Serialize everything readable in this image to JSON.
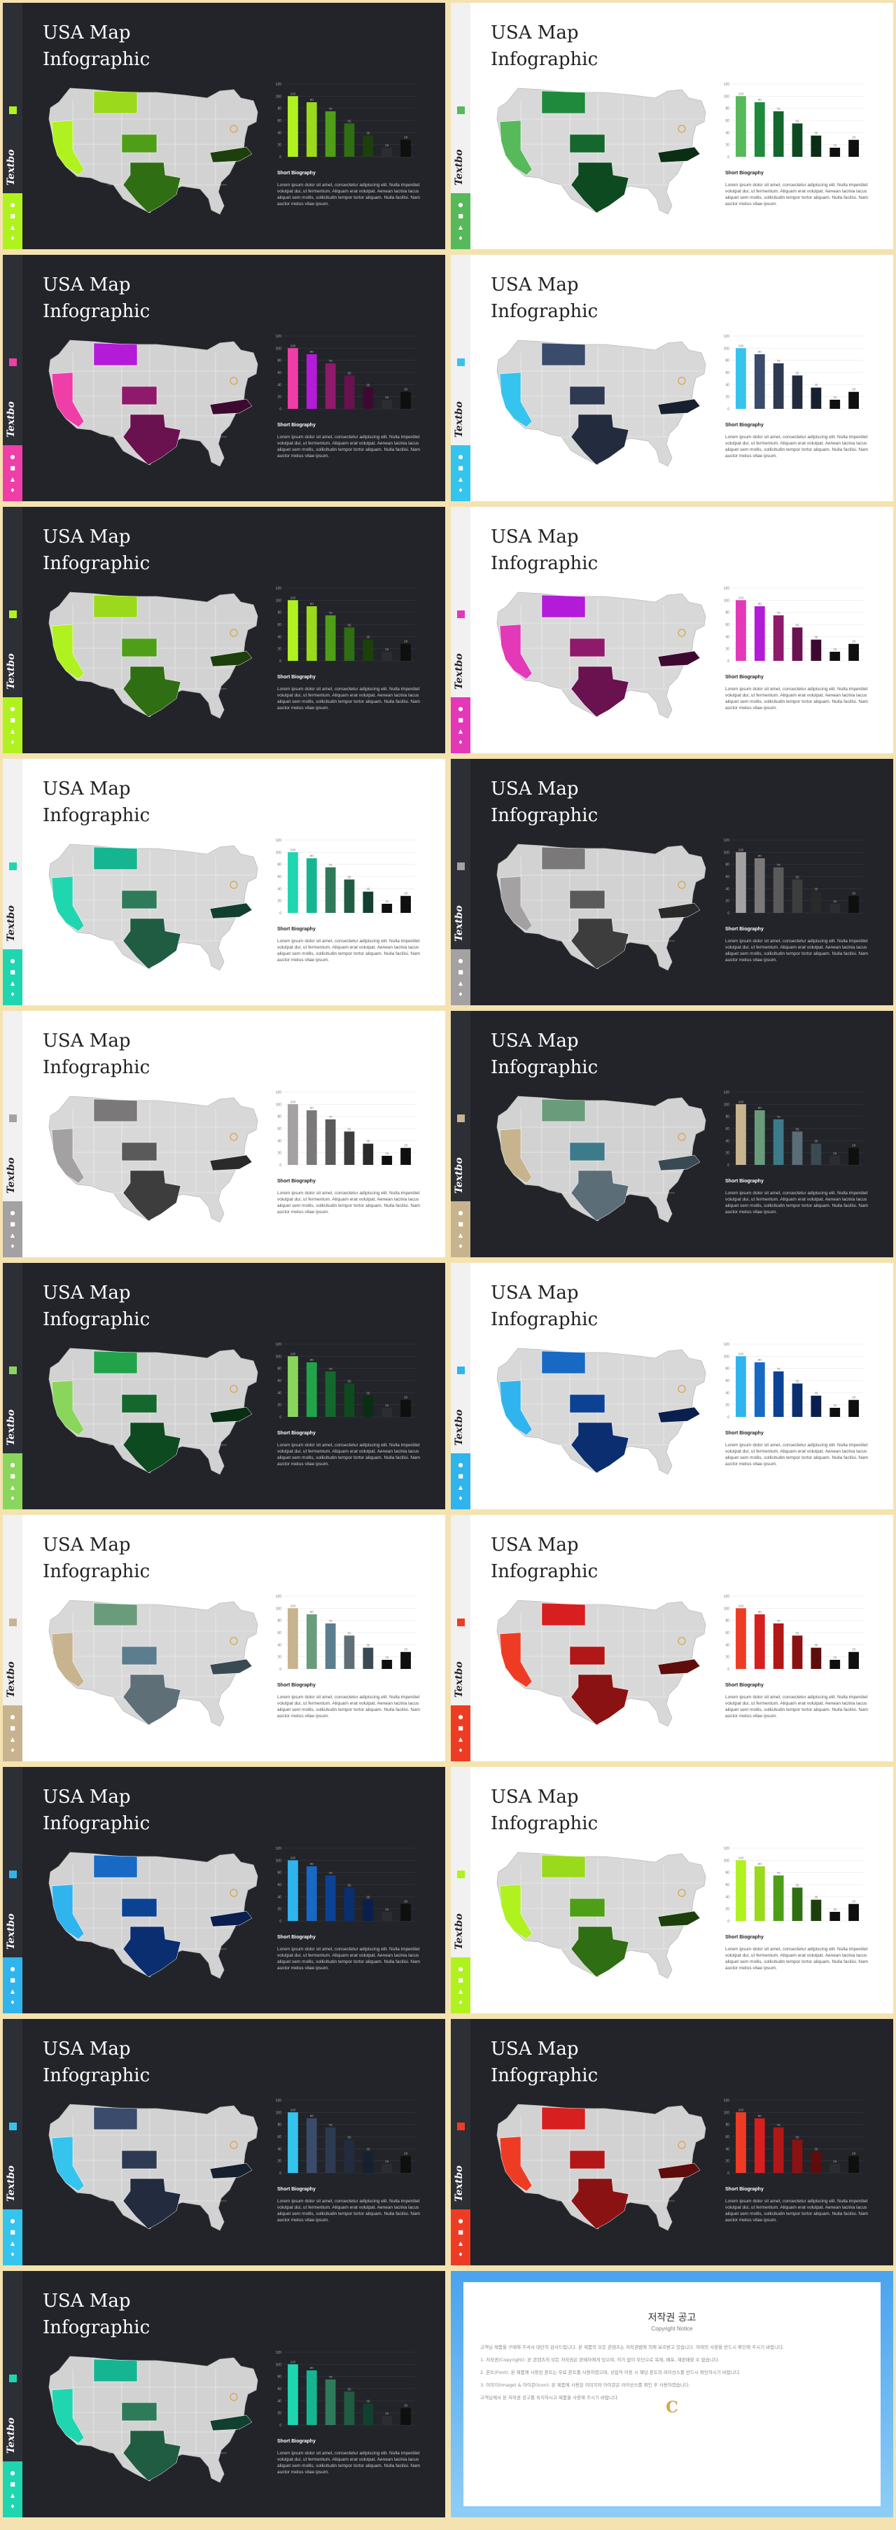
{
  "slide_title_line1": "USA Map",
  "slide_title_line2": "Infographic",
  "brand": "Textbo",
  "chart_caption_title": "Short Biography",
  "chart_caption_text": "Lorem ipsum dolor sit amet, consectetur adipiscing elit. Nulla imperdiet volutpat dui, ut fermentum. Aliquam erat volutpat. Aenean lacinia lacus aliquet sem mollis, sollicitudin tempor tortor aliquam. Nulla facilisi. Nam auctor metus vitae ipsum.",
  "chart_data": {
    "type": "bar",
    "y_ticks": [
      0,
      20,
      40,
      60,
      80,
      100,
      120
    ],
    "ylim": [
      0,
      120
    ],
    "values": [
      100,
      90,
      75,
      55,
      35,
      15,
      28
    ],
    "data_labels": [
      "100",
      "90",
      "75",
      "55",
      "35",
      "15",
      "28"
    ]
  },
  "slides": [
    {
      "theme": "dark",
      "colors": [
        "#b0f21f",
        "#9ad91b",
        "#4e9e17",
        "#2f6e12",
        "#1d3f0c",
        "#2b2d31",
        "#0f0f0f"
      ]
    },
    {
      "theme": "light",
      "colors": [
        "#56b95a",
        "#1f8a3c",
        "#14672d",
        "#0e4a20",
        "#0a2e14",
        "#0f0f0f",
        "#0f0f0f"
      ]
    },
    {
      "theme": "dark",
      "colors": [
        "#f03ea8",
        "#b31bd8",
        "#8f1a6b",
        "#6a1150",
        "#3e0930",
        "#2b2d31",
        "#0f0f0f"
      ]
    },
    {
      "theme": "light",
      "colors": [
        "#35c4ee",
        "#3a4b6b",
        "#2d3a52",
        "#222c3e",
        "#16202f",
        "#0f0f0f",
        "#0f0f0f"
      ]
    },
    {
      "theme": "dark",
      "colors": [
        "#b0f21f",
        "#9ad91b",
        "#4e9e17",
        "#2f6e12",
        "#1d3f0c",
        "#2b2d31",
        "#0f0f0f"
      ]
    },
    {
      "theme": "light",
      "colors": [
        "#e338b8",
        "#b31bd8",
        "#8f1a6b",
        "#6a1150",
        "#3e0930",
        "#0f0f0f",
        "#0f0f0f"
      ]
    },
    {
      "theme": "light",
      "colors": [
        "#1fd6b0",
        "#15b592",
        "#2f7a5a",
        "#1f5c42",
        "#124030",
        "#0f0f0f",
        "#0f0f0f"
      ]
    },
    {
      "theme": "dark",
      "colors": [
        "#a3a1a1",
        "#7a7878",
        "#5b5a5a",
        "#3e3d3d",
        "#2a2a2a",
        "#2b2d31",
        "#0f0f0f"
      ]
    },
    {
      "theme": "light",
      "colors": [
        "#a3a1a1",
        "#7a7878",
        "#5b5a5a",
        "#3e3d3d",
        "#2a2a2a",
        "#0f0f0f",
        "#0f0f0f"
      ]
    },
    {
      "theme": "dark",
      "colors": [
        "#c7b48f",
        "#6a9c7b",
        "#3d7a8a",
        "#5b6d76",
        "#3a4a52",
        "#2b2d31",
        "#0f0f0f"
      ]
    },
    {
      "theme": "dark",
      "colors": [
        "#8ad65c",
        "#22a34a",
        "#14672d",
        "#0e4a20",
        "#0a2e14",
        "#2b2d31",
        "#0f0f0f"
      ]
    },
    {
      "theme": "light",
      "colors": [
        "#2fb4ee",
        "#1769c4",
        "#0c4294",
        "#0a2e70",
        "#0a1f4e",
        "#0f0f0f",
        "#0f0f0f"
      ]
    },
    {
      "theme": "light",
      "colors": [
        "#c7b48f",
        "#6a9c7b",
        "#5b7d8e",
        "#5e6f78",
        "#3a4a52",
        "#0f0f0f",
        "#0f0f0f"
      ]
    },
    {
      "theme": "light",
      "colors": [
        "#ee3c24",
        "#d71f1f",
        "#b21717",
        "#8b1212",
        "#5e0c0c",
        "#0f0f0f",
        "#0f0f0f"
      ]
    },
    {
      "theme": "dark",
      "colors": [
        "#2fb4ee",
        "#1769c4",
        "#0c4294",
        "#0a2e70",
        "#0a1f4e",
        "#2b2d31",
        "#0f0f0f"
      ]
    },
    {
      "theme": "light",
      "colors": [
        "#b0f21f",
        "#9ad91b",
        "#4e9e17",
        "#2f6e12",
        "#1d3f0c",
        "#0f0f0f",
        "#0f0f0f"
      ]
    },
    {
      "theme": "dark",
      "colors": [
        "#35c4ee",
        "#3a4b6b",
        "#2d3a52",
        "#222c3e",
        "#16202f",
        "#2b2d31",
        "#0f0f0f"
      ]
    },
    {
      "theme": "dark",
      "colors": [
        "#ee3c24",
        "#d71f1f",
        "#b21717",
        "#8b1212",
        "#5e0c0c",
        "#2b2d31",
        "#0f0f0f"
      ]
    },
    {
      "theme": "dark",
      "colors": [
        "#1fd6b0",
        "#15b592",
        "#2f7a5a",
        "#1f5c42",
        "#124030",
        "#2b2d31",
        "#0f0f0f"
      ]
    }
  ],
  "notice": {
    "title": "저작권 공고",
    "subtitle": "Copyright Notice",
    "paragraphs": [
      "고객님 제품을 구매해 주셔서 대단히 감사드립니다. 본 제품의 모든 콘텐츠는 저작권법에 의해 보호받고 있습니다. 아래의 사항을 반드시 확인해 주시기 바랍니다.",
      "1. 저작권(Copyright): 본 콘텐츠의 모든 저작권은 판매자에게 있으며, 허가 없이 무단으로 복제, 배포, 재판매할 수 없습니다.",
      "2. 폰트(Font): 본 제품에 사용된 폰트는 무료 폰트를 사용하였으며, 상업적 이용 시 해당 폰트의 라이선스를 반드시 확인하시기 바랍니다.",
      "3. 이미지(Image) & 아이콘(Icon): 본 제품에 사용된 이미지와 아이콘은 라이선스를 확인 후 사용하였습니다.",
      "고객님께서 본 저작권 공고를 숙지하시고 제품을 사용해 주시기 바랍니다."
    ]
  }
}
